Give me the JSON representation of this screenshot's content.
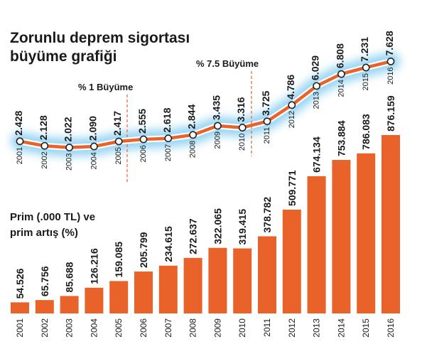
{
  "title_line1": "Zorunlu deprem sigortası",
  "title_line2": "büyüme grafiği",
  "annotation_1": "% 1 Büyüme",
  "annotation_2": "% 7.5 Büyüme",
  "chart_data": [
    {
      "type": "line",
      "name": "",
      "x": [
        "2001",
        "2002",
        "2003",
        "2004",
        "2005",
        "2006",
        "2007",
        "2008",
        "2009",
        "2010",
        "2011",
        "2012",
        "2013",
        "2014",
        "2015",
        "2016"
      ],
      "labels": [
        "2.428",
        "2.128",
        "2.022",
        "2.090",
        "2.417",
        "2.555",
        "2.618",
        "2.844",
        "3.435",
        "3.316",
        "3.725",
        "4.786",
        "6.029",
        "6.808",
        "7.231",
        "7.628"
      ],
      "values": [
        2.428,
        2.128,
        2.022,
        2.09,
        2.417,
        2.555,
        2.618,
        2.844,
        3.435,
        3.316,
        3.725,
        4.786,
        6.029,
        6.808,
        7.231,
        7.628
      ],
      "colors": {
        "line": "#e8622a",
        "glow": "#8fd1f2",
        "marker_fill": "#ffffff",
        "marker_stroke": "#222222"
      }
    },
    {
      "type": "bar",
      "title": "Prim (.000 TL) ve",
      "subtitle": "prim artış (%)",
      "categories": [
        "2001",
        "2002",
        "2003",
        "2004",
        "2005",
        "2006",
        "2007",
        "2008",
        "2009",
        "2010",
        "2011",
        "2012",
        "2013",
        "2014",
        "2015",
        "2016"
      ],
      "labels": [
        "54.526",
        "65.756",
        "85.688",
        "126.216",
        "159.085",
        "205.799",
        "234.615",
        "272.637",
        "322.065",
        "319.415",
        "378.782",
        "509.771",
        "674.134",
        "753.884",
        "786.083",
        "876.159"
      ],
      "values": [
        54526,
        65756,
        85688,
        126216,
        159085,
        205799,
        234615,
        272637,
        322065,
        319415,
        378782,
        509771,
        674134,
        753884,
        786083,
        876159
      ],
      "ylim": [
        0,
        876159
      ],
      "color": "#e8622a"
    }
  ]
}
